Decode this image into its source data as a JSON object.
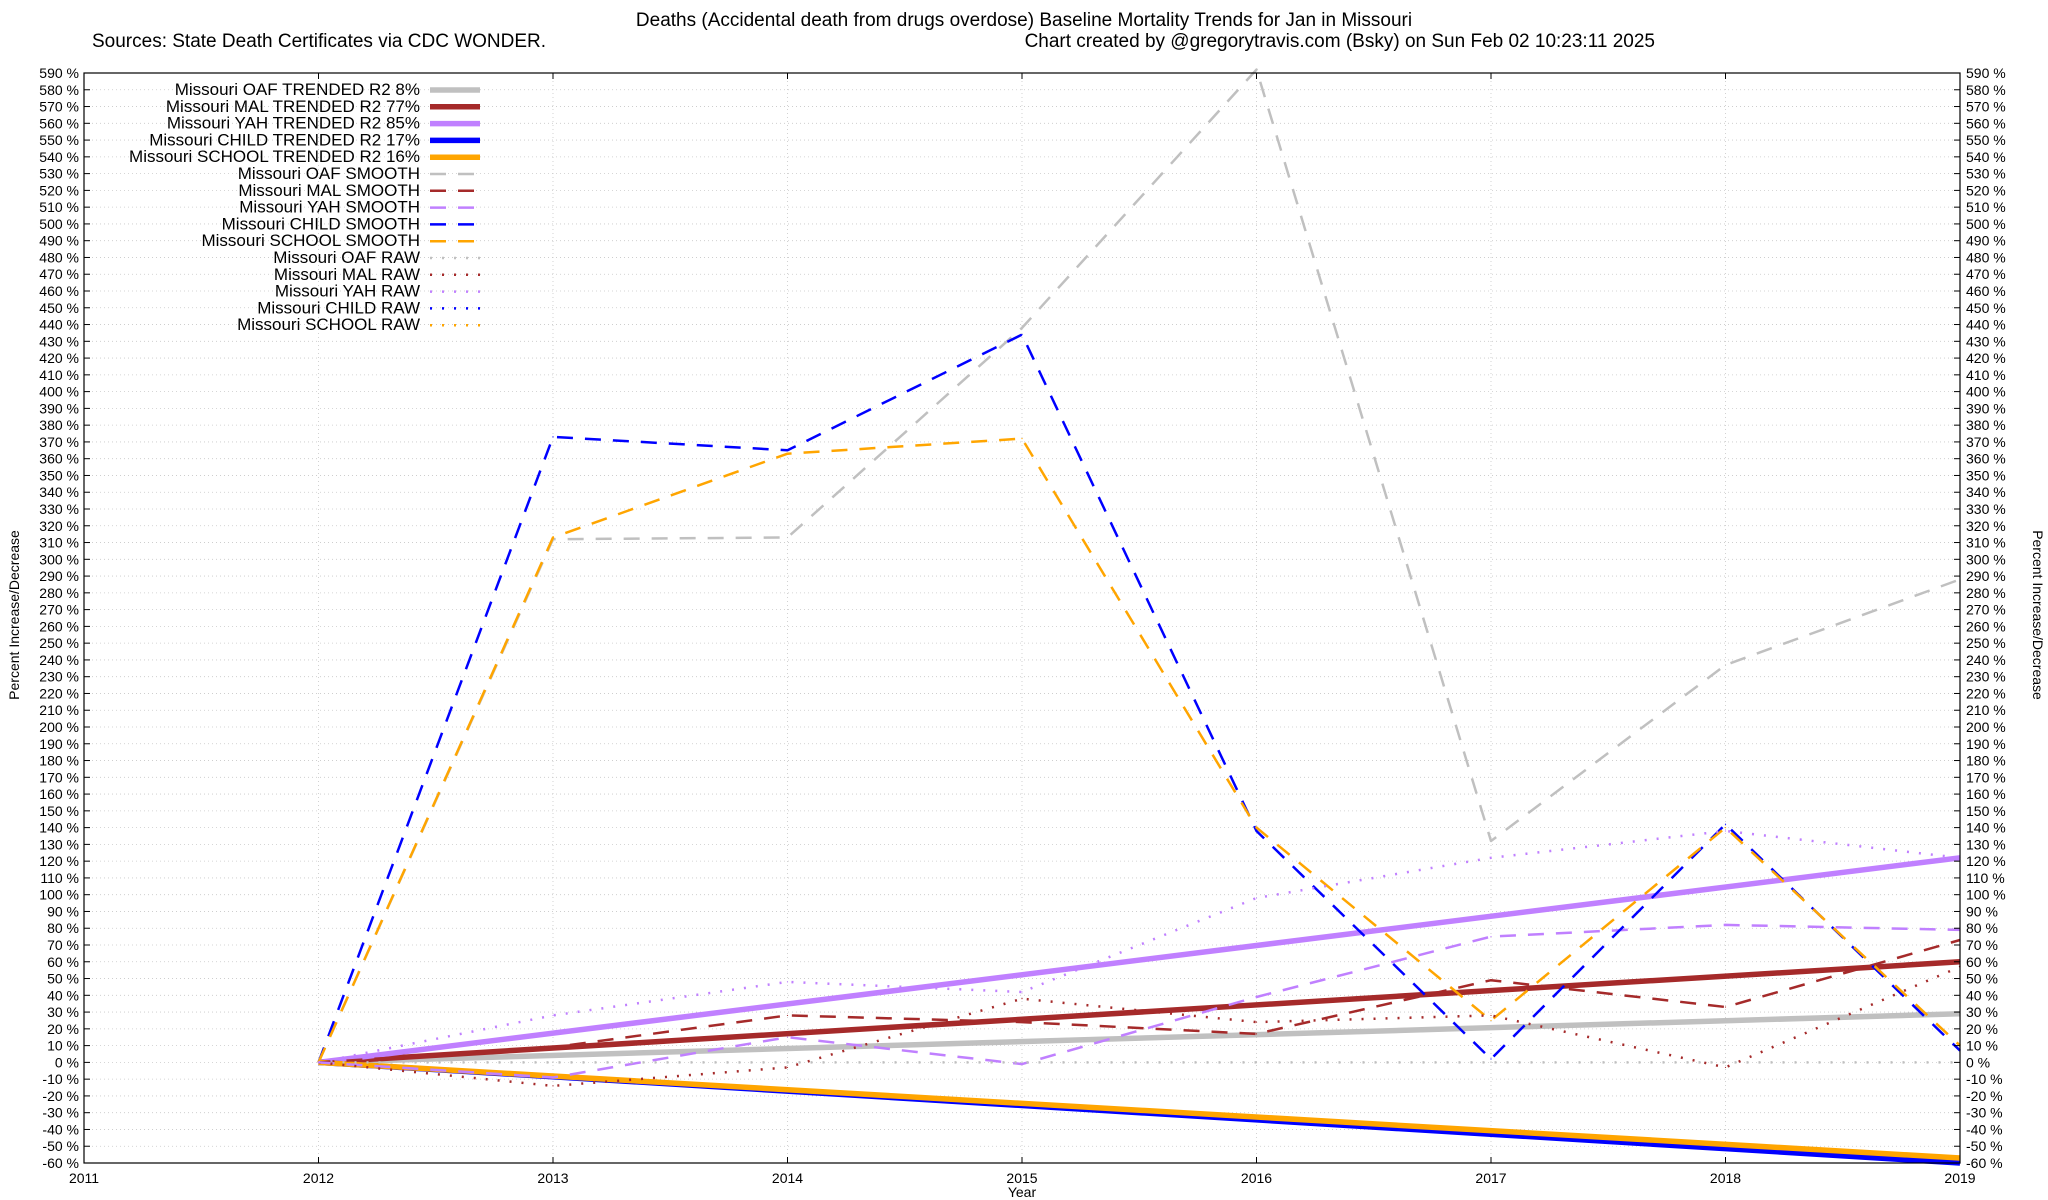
{
  "chart_data": {
    "type": "line",
    "title": "Deaths (Accidental death from drugs overdose)  Baseline Mortality Trends for Jan in Missouri",
    "subtitle_left": "Sources: State Death Certificates via CDC WONDER.",
    "subtitle_right": "Chart created by @gregorytravis.com (Bsky) on Sun Feb 02 10:23:11 2025",
    "xlabel": "Year",
    "ylabel": "Percent Increase/Decrease",
    "ylabel_right": "Percent Increase/Decrease",
    "xlim": [
      2011,
      2019
    ],
    "ylim": [
      -60,
      590
    ],
    "x_ticks": [
      "2011",
      "2012",
      "2013",
      "2014",
      "2015",
      "2016",
      "2017",
      "2018",
      "2019"
    ],
    "y_tick_suffix": " %",
    "y_tick_step": 10,
    "grid": true,
    "legend_position": "top-left",
    "series": [
      {
        "name": "Missouri OAF TRENDED R2  8%",
        "color": "#c0c0c0",
        "style": "solid",
        "x": [
          2012,
          2019
        ],
        "values": [
          0,
          29
        ]
      },
      {
        "name": "Missouri MAL TRENDED R2  77%",
        "color": "#a52a2a",
        "style": "solid",
        "x": [
          2012,
          2019
        ],
        "values": [
          0,
          60
        ]
      },
      {
        "name": "Missouri YAH TRENDED R2  85%",
        "color": "#c080ff",
        "style": "solid",
        "x": [
          2012,
          2019
        ],
        "values": [
          0,
          122
        ]
      },
      {
        "name": "Missouri CHILD TRENDED R2  17%",
        "color": "#0000ff",
        "style": "solid",
        "x": [
          2012,
          2019
        ],
        "values": [
          0,
          -60
        ]
      },
      {
        "name": "Missouri SCHOOL TRENDED R2  16%",
        "color": "#ffa500",
        "style": "solid",
        "x": [
          2012,
          2019
        ],
        "values": [
          0,
          -57
        ]
      },
      {
        "name": "Missouri OAF SMOOTH",
        "color": "#c0c0c0",
        "style": "dash",
        "x": [
          2012,
          2013,
          2014,
          2015,
          2016,
          2017,
          2018,
          2019
        ],
        "values": [
          0,
          312,
          313,
          438,
          592,
          132,
          237,
          288
        ]
      },
      {
        "name": "Missouri MAL SMOOTH",
        "color": "#a52a2a",
        "style": "dash",
        "x": [
          2012,
          2013,
          2014,
          2015,
          2016,
          2017,
          2018,
          2019
        ],
        "values": [
          0,
          9,
          28,
          24,
          17,
          49,
          33,
          73
        ]
      },
      {
        "name": "Missouri YAH SMOOTH",
        "color": "#c080ff",
        "style": "dash",
        "x": [
          2012,
          2013,
          2014,
          2015,
          2016,
          2017,
          2018,
          2019
        ],
        "values": [
          0,
          -9,
          15,
          -1,
          39,
          75,
          82,
          79
        ]
      },
      {
        "name": "Missouri CHILD SMOOTH",
        "color": "#0000ff",
        "style": "dash",
        "x": [
          2012,
          2013,
          2014,
          2015,
          2016,
          2017,
          2018,
          2019
        ],
        "values": [
          0,
          373,
          365,
          434,
          138,
          2,
          142,
          7
        ]
      },
      {
        "name": "Missouri SCHOOL SMOOTH",
        "color": "#ffa500",
        "style": "dash",
        "x": [
          2012,
          2013,
          2014,
          2015,
          2016,
          2017,
          2018,
          2019
        ],
        "values": [
          0,
          313,
          363,
          372,
          140,
          25,
          140,
          10
        ]
      },
      {
        "name": "Missouri OAF RAW",
        "color": "#c0c0c0",
        "style": "dot",
        "x": [
          2012,
          2013,
          2014,
          2015,
          2016,
          2017,
          2018,
          2019
        ],
        "values": [
          0,
          0,
          0,
          0,
          0,
          0,
          0,
          0
        ]
      },
      {
        "name": "Missouri MAL RAW",
        "color": "#a52a2a",
        "style": "dot",
        "x": [
          2012,
          2013,
          2014,
          2015,
          2016,
          2017,
          2018,
          2019
        ],
        "values": [
          0,
          -14,
          -3,
          38,
          24,
          28,
          -3,
          57
        ]
      },
      {
        "name": "Missouri YAH RAW",
        "color": "#c080ff",
        "style": "dot",
        "x": [
          2012,
          2013,
          2014,
          2015,
          2016,
          2017,
          2018,
          2019
        ],
        "values": [
          0,
          28,
          48,
          42,
          98,
          122,
          138,
          122
        ]
      },
      {
        "name": "Missouri CHILD RAW",
        "color": "#0000ff",
        "style": "dot",
        "x": [],
        "values": []
      },
      {
        "name": "Missouri SCHOOL RAW",
        "color": "#ffa500",
        "style": "dot",
        "x": [],
        "values": []
      }
    ]
  }
}
